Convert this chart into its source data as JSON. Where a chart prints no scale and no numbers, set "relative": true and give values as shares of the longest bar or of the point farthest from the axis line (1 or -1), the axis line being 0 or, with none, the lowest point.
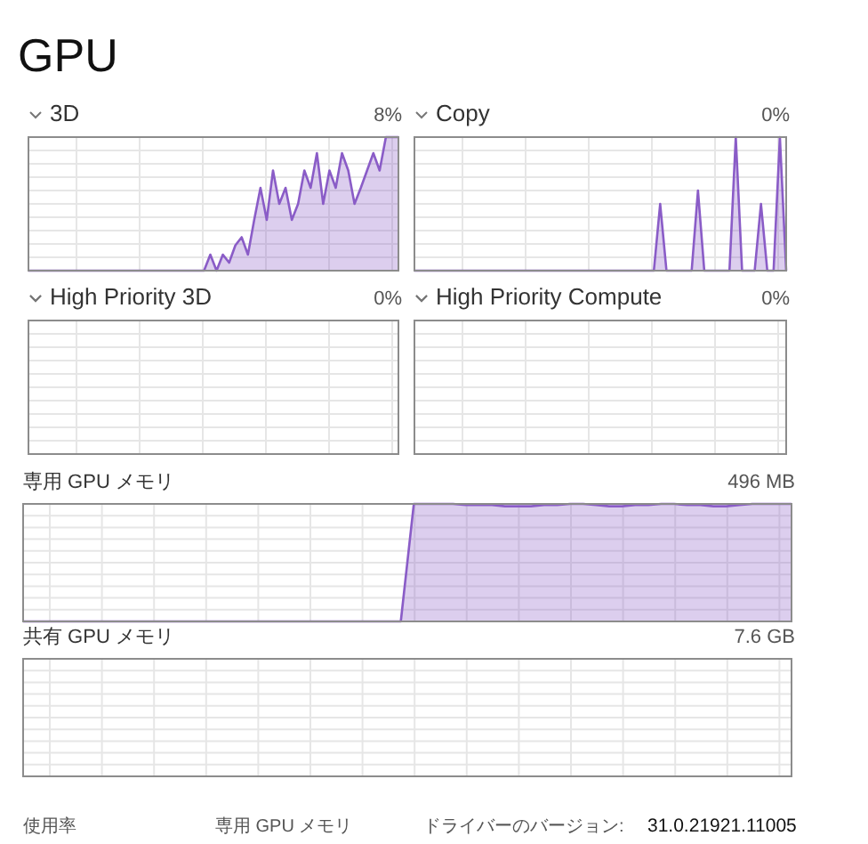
{
  "chart_data": [
    {
      "type": "other",
      "title": "GPU"
    },
    {
      "type": "area",
      "relative": true,
      "title": "3D",
      "subtitle": "8%",
      "color": "#8a5cc7",
      "grid": true,
      "categories": [
        null,
        null,
        null,
        null,
        null,
        null,
        null,
        null,
        null,
        null,
        null,
        null,
        null,
        null,
        null,
        null,
        null,
        null,
        null,
        null,
        null,
        null,
        null,
        null,
        null,
        null,
        null,
        null,
        null,
        null,
        null,
        null,
        null,
        null,
        null,
        null,
        null,
        null,
        null,
        null,
        null,
        null,
        null,
        null,
        null,
        null,
        null,
        null,
        null,
        null,
        null,
        null,
        null,
        null,
        null,
        null,
        null,
        null,
        null,
        null
      ],
      "values": [
        0,
        0,
        0,
        0,
        0,
        0,
        0,
        0,
        0,
        0,
        0,
        0,
        0,
        0,
        0,
        0,
        0,
        0,
        0,
        0,
        0,
        0,
        0,
        0,
        0,
        0,
        0,
        0,
        0,
        0.12,
        0,
        0.12,
        0.06,
        0.19,
        0.25,
        0.12,
        0.38,
        0.62,
        0.38,
        0.75,
        0.5,
        0.62,
        0.38,
        0.5,
        0.75,
        0.62,
        0.88,
        0.5,
        0.75,
        0.62,
        0.88,
        0.75,
        0.5,
        0.62,
        0.75,
        0.88,
        0.75,
        1,
        1,
        1
      ]
    },
    {
      "type": "area",
      "relative": true,
      "title": "Copy",
      "subtitle": "0%",
      "color": "#8a5cc7",
      "grid": true,
      "categories": [
        null,
        null,
        null,
        null,
        null,
        null,
        null,
        null,
        null,
        null,
        null,
        null,
        null,
        null,
        null,
        null,
        null,
        null,
        null,
        null,
        null,
        null,
        null,
        null,
        null,
        null,
        null,
        null,
        null,
        null,
        null,
        null,
        null,
        null,
        null,
        null,
        null,
        null,
        null,
        null,
        null,
        null,
        null,
        null,
        null,
        null,
        null,
        null,
        null,
        null,
        null,
        null,
        null,
        null,
        null,
        null,
        null,
        null,
        null,
        null
      ],
      "values": [
        0,
        0,
        0,
        0,
        0,
        0,
        0,
        0,
        0,
        0,
        0,
        0,
        0,
        0,
        0,
        0,
        0,
        0,
        0,
        0,
        0,
        0,
        0,
        0,
        0,
        0,
        0,
        0,
        0,
        0,
        0,
        0,
        0,
        0,
        0,
        0,
        0,
        0,
        0,
        0.5,
        0,
        0,
        0,
        0,
        0,
        0.6,
        0,
        0,
        0,
        0,
        0,
        1,
        0,
        0,
        0,
        0.5,
        0,
        0,
        1,
        0
      ]
    },
    {
      "type": "other",
      "title": "High Priority 3D",
      "subtitle": "0%"
    },
    {
      "type": "other",
      "title": "High Priority Compute",
      "subtitle": "0%"
    },
    {
      "type": "area",
      "relative": true,
      "title": "専用 GPU メモリ",
      "subtitle": "496 MB",
      "color": "#8a5cc7",
      "grid": true,
      "categories": [
        null,
        null,
        null,
        null,
        null,
        null,
        null,
        null,
        null,
        null,
        null,
        null,
        null,
        null,
        null,
        null,
        null,
        null,
        null,
        null,
        null,
        null,
        null,
        null,
        null,
        null,
        null,
        null,
        null,
        null,
        null,
        null,
        null,
        null,
        null,
        null,
        null,
        null,
        null,
        null,
        null,
        null,
        null,
        null,
        null,
        null,
        null,
        null,
        null,
        null,
        null,
        null,
        null,
        null,
        null,
        null,
        null,
        null,
        null,
        null
      ],
      "values": [
        0,
        0,
        0,
        0,
        0,
        0,
        0,
        0,
        0,
        0,
        0,
        0,
        0,
        0,
        0,
        0,
        0,
        0,
        0,
        0,
        0,
        0,
        0,
        0,
        0,
        0,
        0,
        0,
        0,
        0,
        1,
        1,
        1,
        1,
        0.99,
        0.99,
        0.99,
        0.98,
        0.98,
        0.98,
        0.99,
        0.99,
        1,
        1,
        0.99,
        0.98,
        0.98,
        0.99,
        0.99,
        1,
        1,
        0.99,
        0.99,
        0.98,
        0.98,
        0.99,
        1,
        1,
        1,
        1
      ]
    },
    {
      "type": "other",
      "title": "共有 GPU メモリ",
      "subtitle": "7.6 GB"
    },
    {
      "type": "other",
      "annotations": [
        "使用率",
        "専用 GPU メモリ",
        "ドライバーのバージョン:",
        "31.0.21921.11005"
      ]
    }
  ]
}
